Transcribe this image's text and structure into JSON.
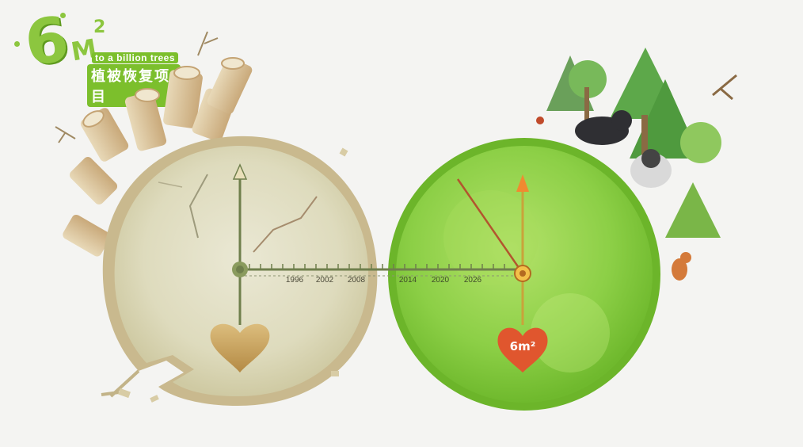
{
  "logo": {
    "number": "6",
    "unit": "M",
    "superscript": "2",
    "tagline_en": "to a billion trees",
    "tagline_cn": "植被恢复项目"
  },
  "timeline": {
    "years": [
      "1996",
      "2002",
      "2008",
      "2014",
      "2020",
      "2026"
    ]
  },
  "heart_badge": {
    "text": "6m²"
  },
  "colors": {
    "stump_face": "#e2dfc3",
    "stump_rim": "#c9b98e",
    "green_face": "#8fd04a",
    "green_rim": "#6cb52a",
    "hand_dark": "#6f7f4c",
    "arrow_orange": "#f08a30",
    "heart_gold": "#c8a25e",
    "heart_red": "#e0562e"
  }
}
